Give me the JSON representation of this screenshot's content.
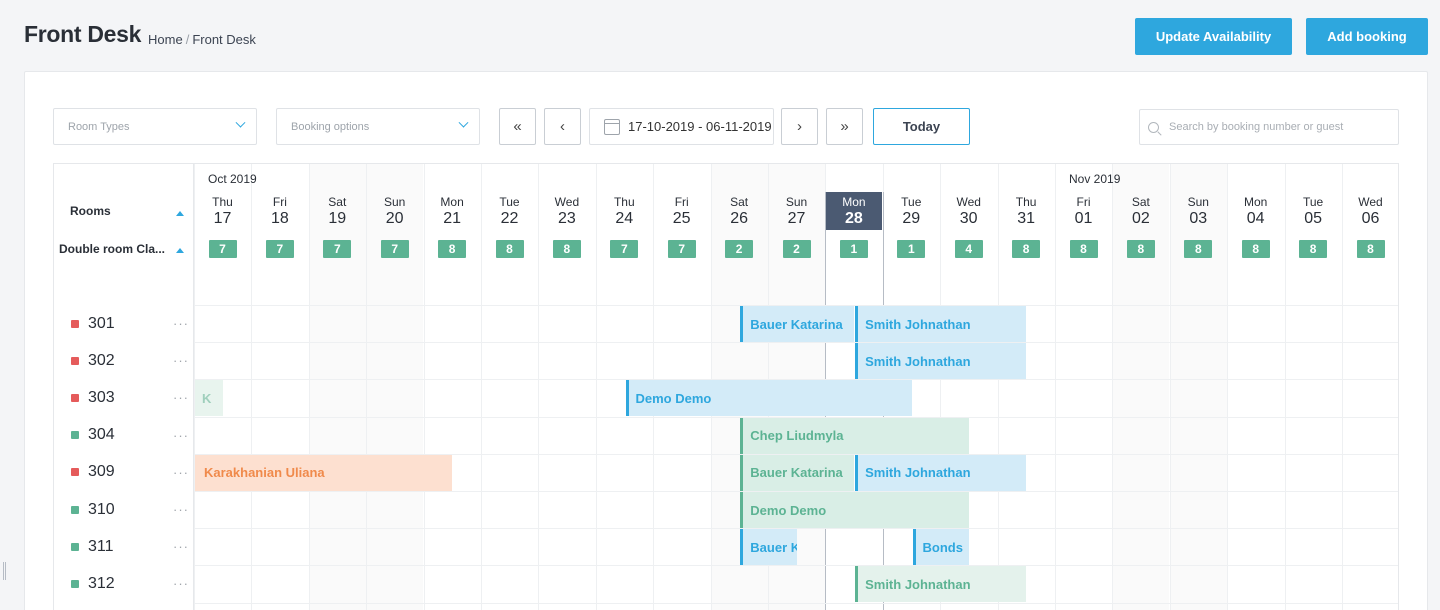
{
  "header": {
    "title": "Front Desk",
    "breadcrumb": {
      "home": "Home",
      "separator": "/",
      "current": "Front Desk"
    },
    "update_label": "Update Availability",
    "add_label": "Add booking"
  },
  "toolbar": {
    "room_types_placeholder": "Room Types",
    "booking_options_placeholder": "Booking options",
    "first_label": "«",
    "prev_label": "‹",
    "next_label": "›",
    "last_label": "»",
    "date_range": "17-10-2019 - 06-11-2019",
    "today_label": "Today",
    "search_placeholder": "Search by booking number or guest"
  },
  "calendar": {
    "rooms_header": "Rooms",
    "room_type": "Double room Cla...",
    "months": [
      "Oct 2019",
      "Nov 2019"
    ],
    "days": [
      {
        "dn": "Thu",
        "dd": "17",
        "avail": "7"
      },
      {
        "dn": "Fri",
        "dd": "18",
        "avail": "7"
      },
      {
        "dn": "Sat",
        "dd": "19",
        "avail": "7"
      },
      {
        "dn": "Sun",
        "dd": "20",
        "avail": "7"
      },
      {
        "dn": "Mon",
        "dd": "21",
        "avail": "8"
      },
      {
        "dn": "Tue",
        "dd": "22",
        "avail": "8"
      },
      {
        "dn": "Wed",
        "dd": "23",
        "avail": "8"
      },
      {
        "dn": "Thu",
        "dd": "24",
        "avail": "7"
      },
      {
        "dn": "Fri",
        "dd": "25",
        "avail": "7"
      },
      {
        "dn": "Sat",
        "dd": "26",
        "avail": "2"
      },
      {
        "dn": "Sun",
        "dd": "27",
        "avail": "2"
      },
      {
        "dn": "Mon",
        "dd": "28",
        "avail": "1"
      },
      {
        "dn": "Tue",
        "dd": "29",
        "avail": "1"
      },
      {
        "dn": "Wed",
        "dd": "30",
        "avail": "4"
      },
      {
        "dn": "Thu",
        "dd": "31",
        "avail": "8"
      },
      {
        "dn": "Fri",
        "dd": "01",
        "avail": "8"
      },
      {
        "dn": "Sat",
        "dd": "02",
        "avail": "8"
      },
      {
        "dn": "Sun",
        "dd": "03",
        "avail": "8"
      },
      {
        "dn": "Mon",
        "dd": "04",
        "avail": "8"
      },
      {
        "dn": "Tue",
        "dd": "05",
        "avail": "8"
      },
      {
        "dn": "Wed",
        "dd": "06",
        "avail": "8"
      }
    ],
    "today_date": "28",
    "rooms": [
      {
        "num": "301",
        "status": "dirty"
      },
      {
        "num": "302",
        "status": "dirty"
      },
      {
        "num": "303",
        "status": "dirty"
      },
      {
        "num": "304",
        "status": "clean"
      },
      {
        "num": "309",
        "status": "dirty"
      },
      {
        "num": "310",
        "status": "clean"
      },
      {
        "num": "311",
        "status": "clean"
      },
      {
        "num": "312",
        "status": "clean"
      }
    ],
    "room_menu": "···",
    "bookings": [
      {
        "room": "301",
        "guest": "Bauer Katarina",
        "start": "26",
        "end": "28",
        "color": "blue"
      },
      {
        "room": "301",
        "guest": "Smith Johnathan",
        "start": "28",
        "end": "31",
        "color": "blue"
      },
      {
        "room": "302",
        "guest": "Smith Johnathan",
        "start": "28",
        "end": "31",
        "color": "blue"
      },
      {
        "room": "303",
        "guest": "K",
        "start": "17",
        "end": "17",
        "color": "fade"
      },
      {
        "room": "303",
        "guest": "Demo Demo",
        "start": "24",
        "end": "29",
        "color": "blue"
      },
      {
        "room": "304",
        "guest": "Chep Liudmyla",
        "start": "26",
        "end": "30",
        "color": "green"
      },
      {
        "room": "309",
        "guest": "Karakhanian Uliana",
        "start": "17",
        "end": "21",
        "color": "orange"
      },
      {
        "room": "309",
        "guest": "Bauer Katarina",
        "start": "26",
        "end": "28",
        "color": "green"
      },
      {
        "room": "309",
        "guest": "Smith Johnathan",
        "start": "28",
        "end": "31",
        "color": "blue"
      },
      {
        "room": "310",
        "guest": "Demo Demo",
        "start": "26",
        "end": "30",
        "color": "green"
      },
      {
        "room": "311",
        "guest": "Bauer Katarina",
        "start": "26",
        "end": "27",
        "color": "blue"
      },
      {
        "room": "311",
        "guest": "Bonds",
        "start": "29",
        "end": "30",
        "color": "blue"
      },
      {
        "room": "312",
        "guest": "Smith Johnathan",
        "start": "28",
        "end": "31",
        "color": "green-soft"
      }
    ]
  },
  "colors": {
    "accent": "#2ea7de",
    "available": "#5cb393",
    "room_dirty": "#e55b5b",
    "room_clean": "#5cb393",
    "today_header": "#4b5a72"
  }
}
